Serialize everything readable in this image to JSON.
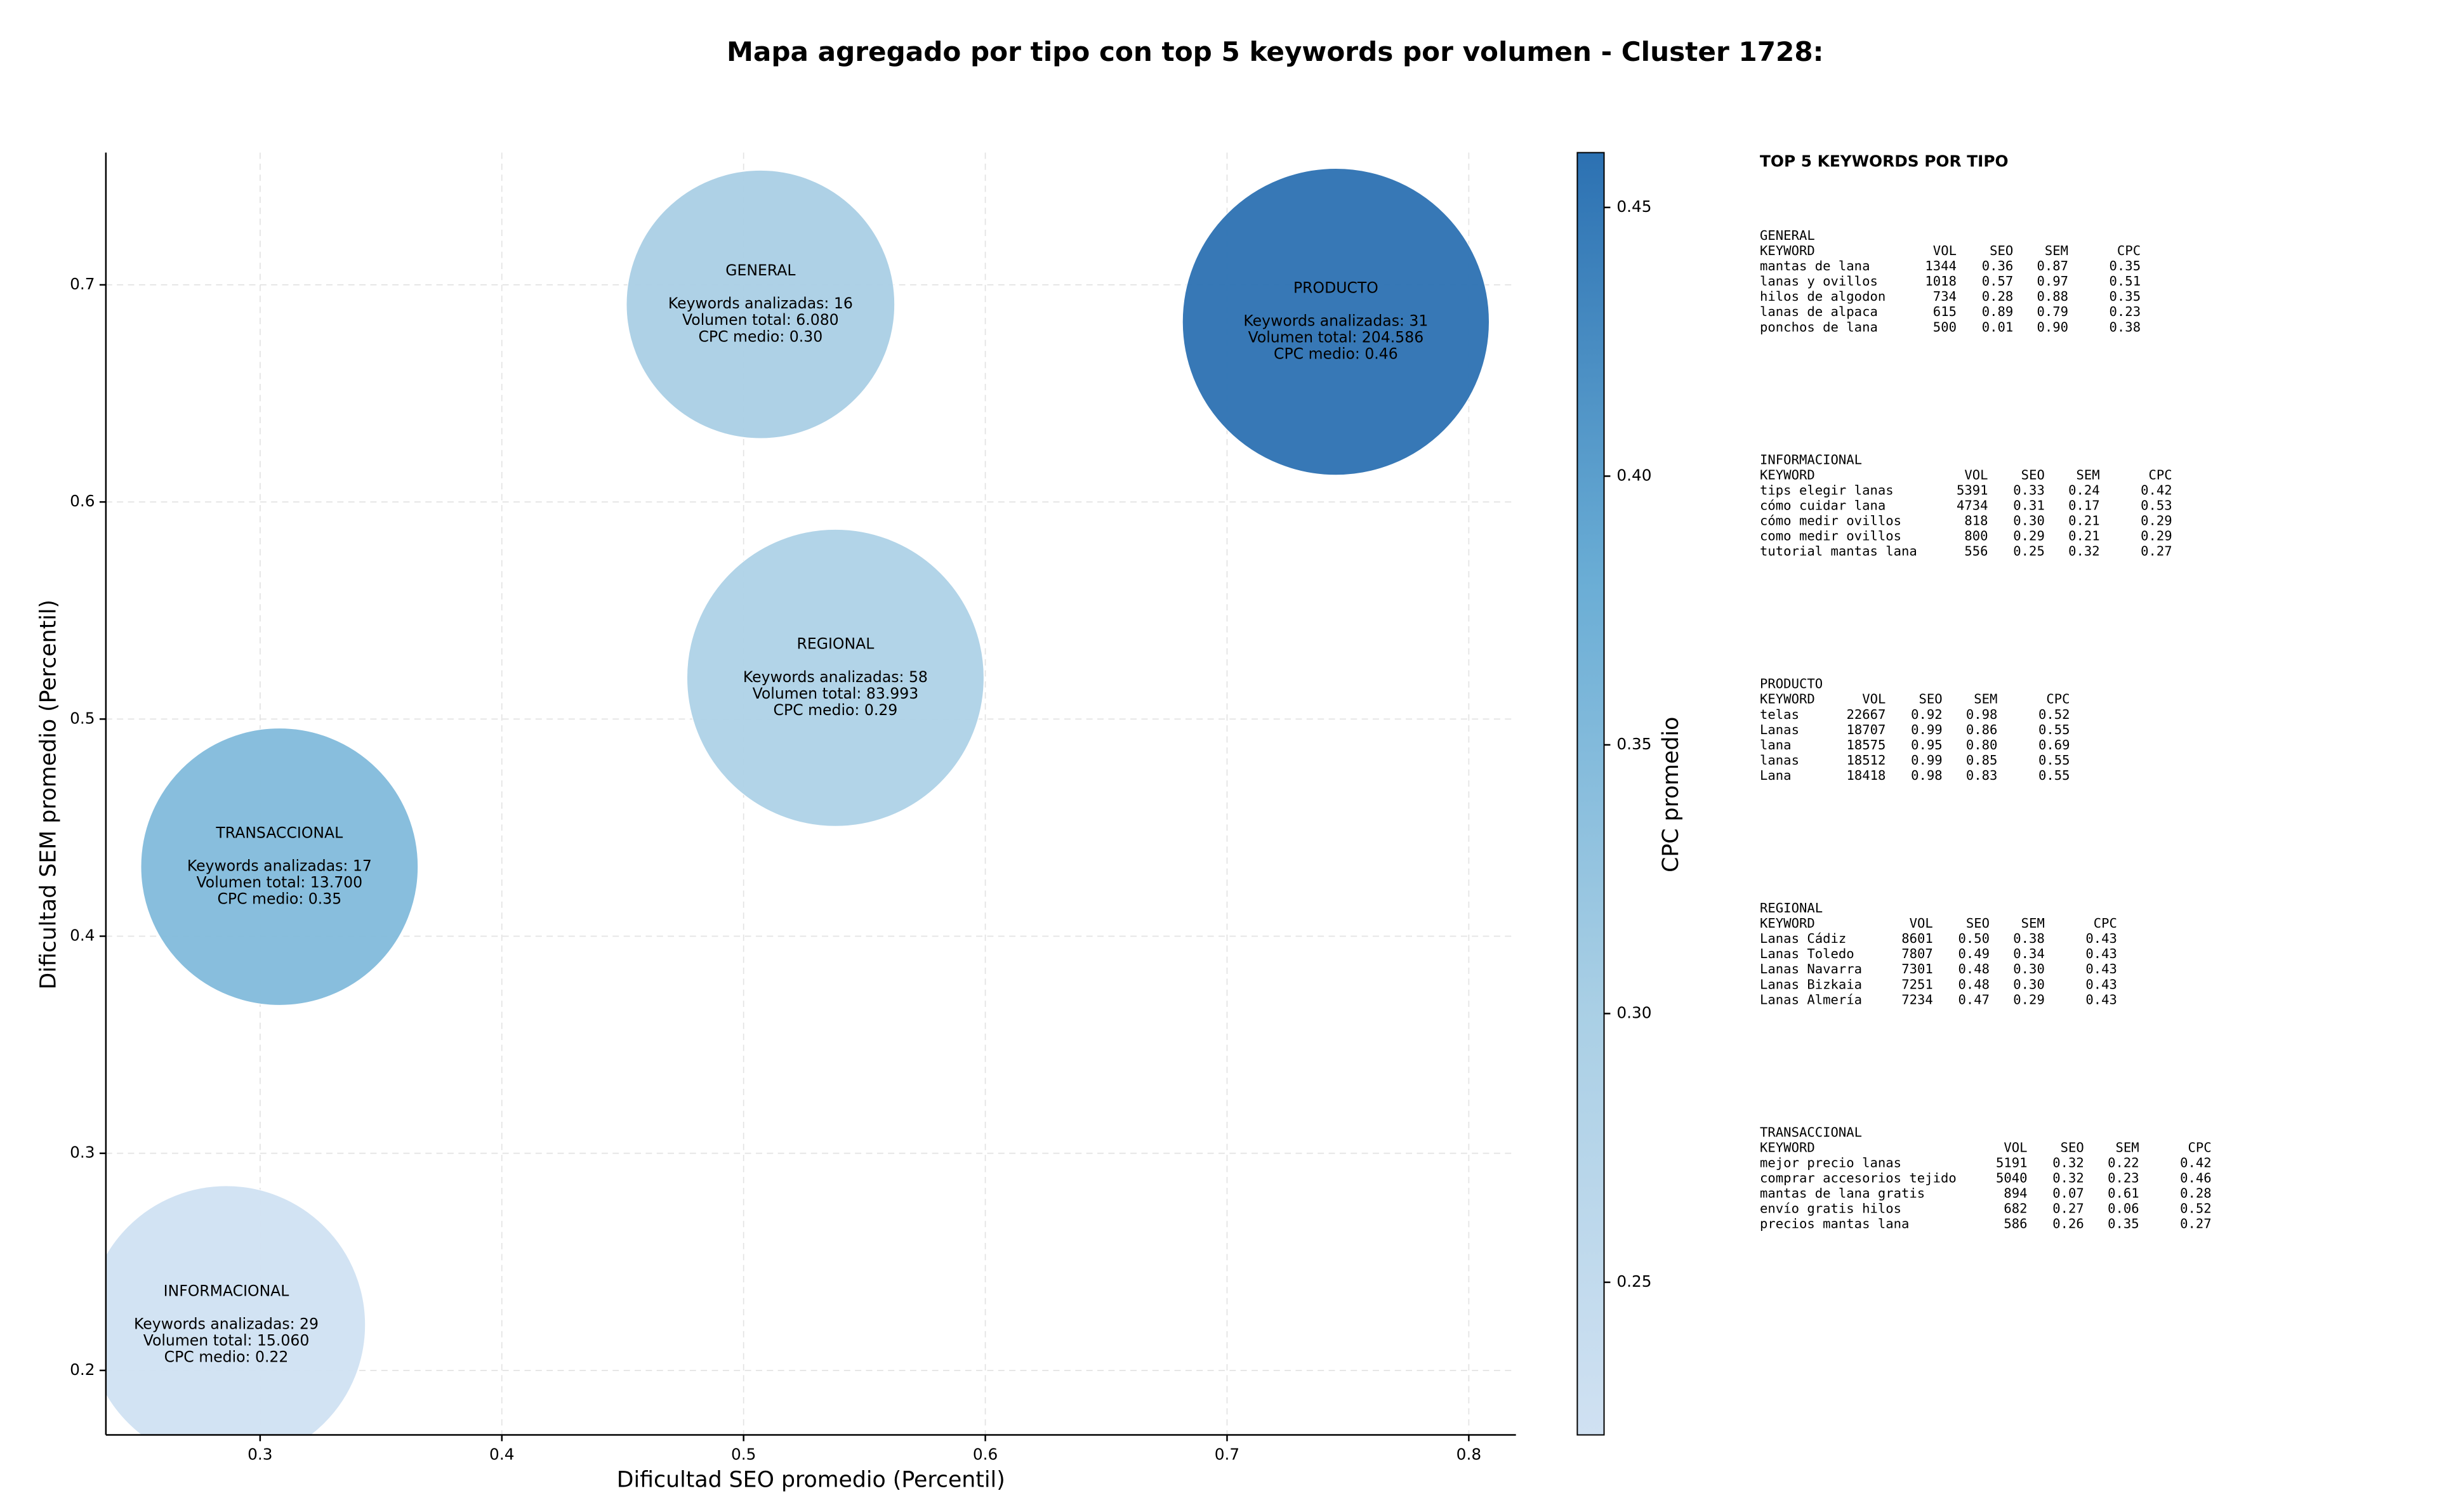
{
  "chart_data": {
    "type": "bubble",
    "title": "Mapa agregado por tipo con top 5 keywords por volumen - Cluster 1728:",
    "x_label": "Dificultad SEO promedio (Percentil)",
    "y_label": "Dificultad SEM promedio (Percentil)",
    "colorbar_label": "CPC promedio",
    "categories": [
      "GENERAL",
      "PRODUCTO",
      "REGIONAL",
      "TRANSACCIONAL",
      "INFORMACIONAL"
    ],
    "x": [
      0.507,
      0.745,
      0.538,
      0.308,
      0.286
    ],
    "values": [
      0.691,
      0.683,
      0.519,
      0.432,
      0.221
    ],
    "sizes": [
      6080,
      204586,
      83993,
      13700,
      15060
    ],
    "cpc": [
      0.3,
      0.46,
      0.29,
      0.35,
      0.22
    ],
    "annotations": [
      [
        "Keywords analizadas: 16",
        "Volumen total: 6.080",
        "CPC medio: 0.30"
      ],
      [
        "Keywords analizadas: 31",
        "Volumen total: 204.586",
        "CPC medio: 0.46"
      ],
      [
        "Keywords analizadas: 58",
        "Volumen total: 83.993",
        "CPC medio: 0.29"
      ],
      [
        "Keywords analizadas: 17",
        "Volumen total: 13.700",
        "CPC medio: 0.35"
      ],
      [
        "Keywords analizadas: 29",
        "Volumen total: 15.060",
        "CPC medio: 0.22"
      ]
    ],
    "xlim": [
      0.2362,
      0.8195
    ],
    "ylim": [
      0.1703,
      0.7609
    ],
    "xticks": [
      0.3,
      0.4,
      0.5,
      0.6,
      0.7,
      0.8
    ],
    "yticks": [
      0.2,
      0.3,
      0.4,
      0.5,
      0.6,
      0.7
    ],
    "clim": [
      0.2216,
      0.4602
    ],
    "cticks": [
      0.25,
      {
        "value": 0.3,
        "label": "0.30"
      },
      0.35,
      {
        "value": 0.4,
        "label": "0.40"
      },
      0.45
    ],
    "colormap": [
      "#d0e1f2",
      "#a9cfe5",
      "#6aadd5",
      "#2c71b2"
    ],
    "grid": true,
    "table_panel": {
      "title": "TOP 5 KEYWORDS POR TIPO",
      "groups": [
        {
          "name": "GENERAL",
          "header": [
            "KEYWORD",
            "VOL",
            "SEO",
            "SEM",
            "CPC"
          ],
          "rows": [
            [
              "mantas de lana",
              "1344",
              "0.36",
              "0.87",
              "0.35"
            ],
            [
              "lanas y ovillos",
              "1018",
              "0.57",
              "0.97",
              "0.51"
            ],
            [
              "hilos de algodon",
              "734",
              "0.28",
              "0.88",
              "0.35"
            ],
            [
              "lanas de alpaca",
              "615",
              "0.89",
              "0.79",
              "0.23"
            ],
            [
              "ponchos de lana",
              "500",
              "0.01",
              "0.90",
              "0.38"
            ]
          ]
        },
        {
          "name": "INFORMACIONAL",
          "header": [
            "KEYWORD",
            "VOL",
            "SEO",
            "SEM",
            "CPC"
          ],
          "rows": [
            [
              "tips elegir lanas",
              "5391",
              "0.33",
              "0.24",
              "0.42"
            ],
            [
              "cómo cuidar lana",
              "4734",
              "0.31",
              "0.17",
              "0.53"
            ],
            [
              "cómo medir ovillos",
              "818",
              "0.30",
              "0.21",
              "0.29"
            ],
            [
              "como medir ovillos",
              "800",
              "0.29",
              "0.21",
              "0.29"
            ],
            [
              "tutorial mantas lana",
              "556",
              "0.25",
              "0.32",
              "0.27"
            ]
          ]
        },
        {
          "name": "PRODUCTO",
          "header": [
            "KEYWORD",
            "VOL",
            "SEO",
            "SEM",
            "CPC"
          ],
          "rows": [
            [
              "telas",
              "22667",
              "0.92",
              "0.98",
              "0.52"
            ],
            [
              "Lanas",
              "18707",
              "0.99",
              "0.86",
              "0.55"
            ],
            [
              "lana",
              "18575",
              "0.95",
              "0.80",
              "0.69"
            ],
            [
              "lanas",
              "18512",
              "0.99",
              "0.85",
              "0.55"
            ],
            [
              "Lana",
              "18418",
              "0.98",
              "0.83",
              "0.55"
            ]
          ]
        },
        {
          "name": "REGIONAL",
          "header": [
            "KEYWORD",
            "VOL",
            "SEO",
            "SEM",
            "CPC"
          ],
          "rows": [
            [
              "Lanas Cádiz",
              "8601",
              "0.50",
              "0.38",
              "0.43"
            ],
            [
              "Lanas Toledo",
              "7807",
              "0.49",
              "0.34",
              "0.43"
            ],
            [
              "Lanas Navarra",
              "7301",
              "0.48",
              "0.30",
              "0.43"
            ],
            [
              "Lanas Bizkaia",
              "7251",
              "0.48",
              "0.30",
              "0.43"
            ],
            [
              "Lanas Almería",
              "7234",
              "0.47",
              "0.29",
              "0.43"
            ]
          ]
        },
        {
          "name": "TRANSACCIONAL",
          "header": [
            "KEYWORD",
            "VOL",
            "SEO",
            "SEM",
            "CPC"
          ],
          "rows": [
            [
              "mejor precio lanas",
              "5191",
              "0.32",
              "0.22",
              "0.42"
            ],
            [
              "comprar accesorios tejido",
              "5040",
              "0.32",
              "0.23",
              "0.46"
            ],
            [
              "mantas de lana gratis",
              "894",
              "0.07",
              "0.61",
              "0.28"
            ],
            [
              "envío gratis hilos",
              "682",
              "0.27",
              "0.06",
              "0.52"
            ],
            [
              "precios mantas lana",
              "586",
              "0.26",
              "0.35",
              "0.27"
            ]
          ]
        }
      ]
    }
  }
}
